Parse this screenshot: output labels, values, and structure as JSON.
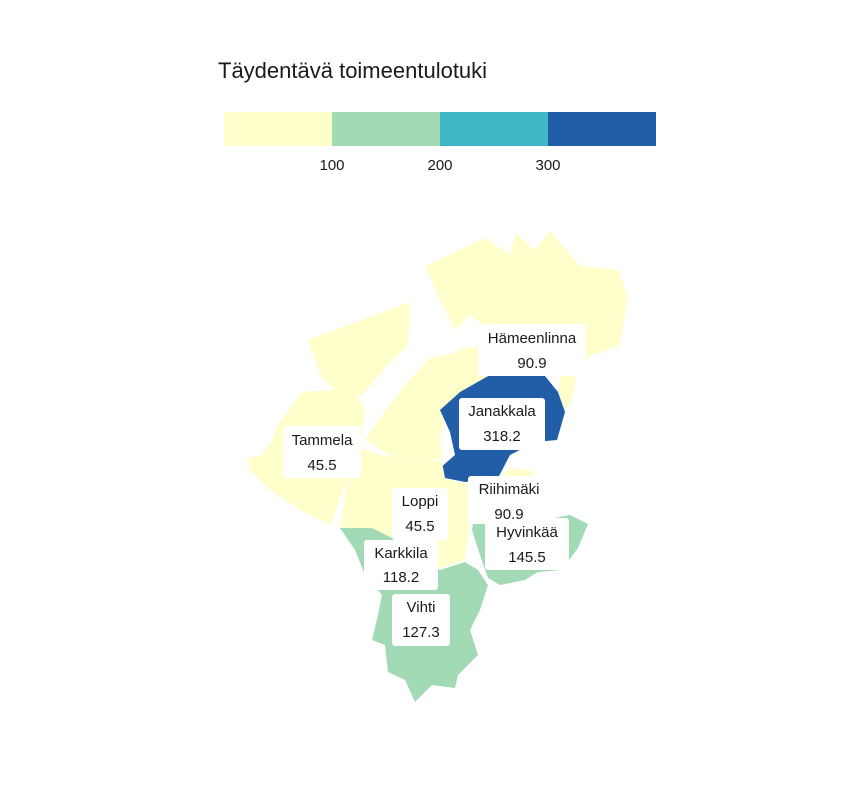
{
  "legend": {
    "title": "Täydentävä toimeentulotuki",
    "ticks": [
      "100",
      "200",
      "300"
    ],
    "colors": [
      "#ffffcc",
      "#a1dab4",
      "#41b6c4",
      "#225ea8"
    ],
    "thresholds": [
      100,
      200,
      300
    ]
  },
  "regions": [
    {
      "id": "hameenlinna",
      "name": "Hämeenlinna",
      "value": "90.9"
    },
    {
      "id": "janakkala",
      "name": "Janakkala",
      "value": "318.2"
    },
    {
      "id": "tammela",
      "name": "Tammela",
      "value": "45.5"
    },
    {
      "id": "riihimaki",
      "name": "Riihimäki",
      "value": "90.9"
    },
    {
      "id": "loppi",
      "name": "Loppi",
      "value": "45.5"
    },
    {
      "id": "hyvinkaa",
      "name": "Hyvinkää",
      "value": "145.5"
    },
    {
      "id": "karkkila",
      "name": "Karkkila",
      "value": "118.2"
    },
    {
      "id": "vihti",
      "name": "Vihti",
      "value": "127.3"
    }
  ]
}
